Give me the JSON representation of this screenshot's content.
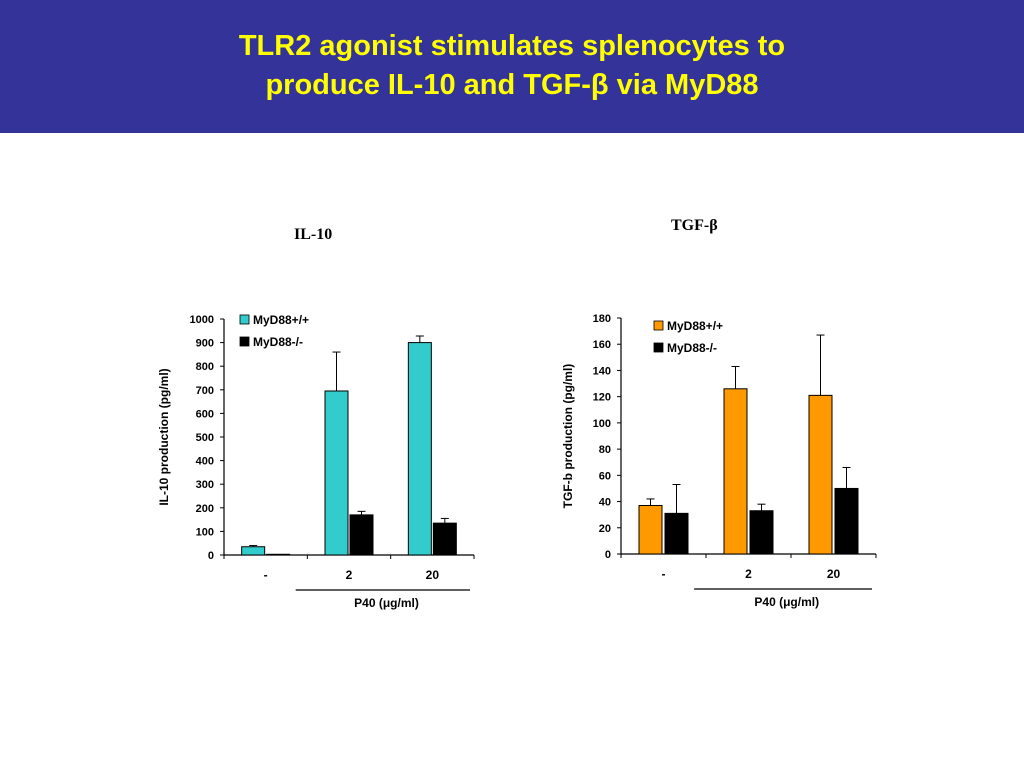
{
  "slide": {
    "title_line_1": "TLR2 agonist stimulates splenocytes to",
    "title_line_2": "produce IL-10 and TGF-β via MyD88",
    "header_color": "#333399",
    "title_color": "#ffff00"
  },
  "panels": {
    "il10": {
      "label": "IL-10"
    },
    "tgfb": {
      "label": "TGF-β"
    }
  },
  "chart_data": [
    {
      "type": "bar",
      "categories": [
        "-",
        "2",
        "20"
      ],
      "x_group_label": "P40 (μg/ml)",
      "ylabel": "IL-10 production (pg/ml)",
      "ylim": [
        0,
        1000
      ],
      "yticks": [
        0,
        100,
        200,
        300,
        400,
        500,
        600,
        700,
        800,
        900,
        1000
      ],
      "legend_position": "top-left",
      "series": [
        {
          "name": "MyD88+/+",
          "color": "#33cccc",
          "values": [
            35,
            695,
            900
          ],
          "errors": [
            5,
            165,
            28
          ]
        },
        {
          "name": "MyD88-/-",
          "color": "#000000",
          "values": [
            3,
            170,
            135
          ],
          "errors": [
            0,
            15,
            20
          ]
        }
      ]
    },
    {
      "type": "bar",
      "categories": [
        "-",
        "2",
        "20"
      ],
      "x_group_label": "P40 (μg/ml)",
      "ylabel": "TGF-b production (pg/ml)",
      "ylim": [
        0,
        180
      ],
      "yticks": [
        0,
        20,
        40,
        60,
        80,
        100,
        120,
        140,
        160,
        180
      ],
      "legend_position": "top-left",
      "series": [
        {
          "name": "MyD88+/+",
          "color": "#ff9900",
          "values": [
            37,
            126,
            121
          ],
          "errors": [
            5,
            17,
            46
          ]
        },
        {
          "name": "MyD88-/-",
          "color": "#000000",
          "values": [
            31,
            33,
            50
          ],
          "errors": [
            22,
            5,
            16
          ]
        }
      ]
    }
  ]
}
